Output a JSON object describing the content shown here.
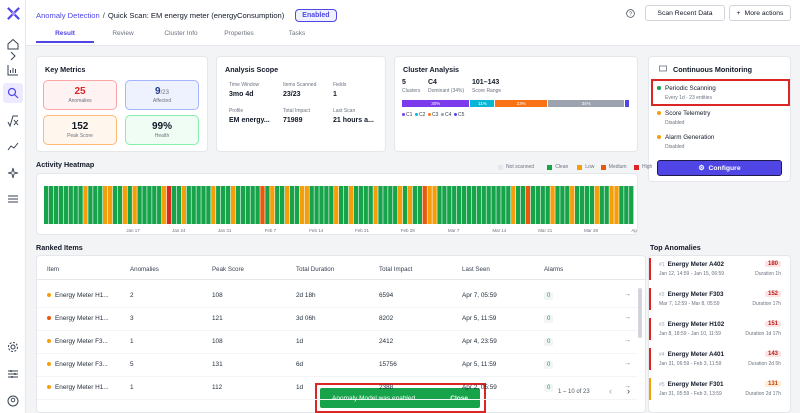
{
  "breadcrumb": {
    "parent": "Anomaly Detection",
    "separator": "/",
    "current": "Quick Scan: EM energy meter (energyConsumption)",
    "status": "Enabled"
  },
  "header": {
    "scan_button": "Scan Recent Data",
    "more_button": "More actions"
  },
  "tabs": [
    "Result",
    "Review",
    "Cluster Info",
    "Properties",
    "Tasks"
  ],
  "key_metrics": {
    "title": "Key Metrics",
    "items": [
      {
        "value": "25",
        "label": "Anomalies",
        "color": "#dc2626",
        "bg": "#fef2f2",
        "border": "#fca5a5"
      },
      {
        "value": "9",
        "suffix": "/23",
        "label": "Affected",
        "color": "#1e3a8a",
        "bg": "#eef2ff",
        "border": "#a5b4fc"
      },
      {
        "value": "152",
        "label": "Peak Score",
        "color": "#111827",
        "bg": "#fff7ed",
        "border": "#fdba74"
      },
      {
        "value": "99%",
        "label": "Health",
        "color": "#111827",
        "bg": "#f0fdf4",
        "border": "#86efac"
      }
    ]
  },
  "analysis_scope": {
    "title": "Analysis Scope",
    "cells": [
      {
        "label": "Time Window",
        "value": "3mo 4d"
      },
      {
        "label": "Items Scanned",
        "value": "23/23"
      },
      {
        "label": "Fields",
        "value": "1"
      },
      {
        "label": "Profile",
        "value": "EM energy..."
      },
      {
        "label": "Total Impact",
        "value": "71989"
      },
      {
        "label": "Last Scan",
        "value": "21 hours a..."
      }
    ]
  },
  "cluster_analysis": {
    "title": "Cluster Analysis",
    "stats": [
      {
        "value": "5",
        "label": "Clusters"
      },
      {
        "value": "C4",
        "label": "Dominant (34%)"
      },
      {
        "value": "101–143",
        "label": "Score Range"
      }
    ],
    "bars": [
      {
        "label": "30%",
        "pct": 30,
        "color": "#7c3aed"
      },
      {
        "label": "11%",
        "pct": 11,
        "color": "#06b6d4"
      },
      {
        "label": "23%",
        "pct": 23,
        "color": "#f97316"
      },
      {
        "label": "34%",
        "pct": 34,
        "color": "#9ca3af"
      },
      {
        "label": "",
        "pct": 2,
        "color": "#4f46e5"
      }
    ],
    "legend": [
      "C1",
      "C2",
      "C3",
      "C4",
      "C5"
    ],
    "legend_colors": [
      "#7c3aed",
      "#06b6d4",
      "#f97316",
      "#9ca3af",
      "#4f46e5"
    ]
  },
  "monitoring": {
    "title": "Continuous Monitoring",
    "items": [
      {
        "name": "Periodic Scanning",
        "sub": "Every 1d · 23 entities",
        "color": "#16a34a"
      },
      {
        "name": "Score Telemetry",
        "sub": "Disabled",
        "color": "#f59e0b"
      },
      {
        "name": "Alarm Generation",
        "sub": "Disabled",
        "color": "#f59e0b"
      }
    ],
    "button": "Configure"
  },
  "heatmap": {
    "title": "Activity Heatmap",
    "legend": [
      "Not scanned",
      "Clean",
      "Low",
      "Medium",
      "High"
    ],
    "legend_colors": [
      "#e5e7eb",
      "#16a34a",
      "#f59e0b",
      "#ea580c",
      "#dc2626"
    ],
    "cells": "GGGGGGGGLGGGLLGGLGLGGGGGLHGGLGGGGGLGGGLGGGGGMGLGGLGGLLGGGGGLGGLGGGGLGGGGLGLGGMLLGGGGGGGGGGGGGGGLGGMGGGGLGGGLGGGGLGGLLGGG",
    "dates": [
      "Jan 17",
      "Jan 24",
      "Jan 31",
      "Feb 7",
      "Feb 14",
      "Feb 21",
      "Feb 28",
      "Mar 7",
      "Mar 14",
      "Mar 21",
      "Mar 28",
      "Apr 4",
      "Apr 11",
      "Apr 18",
      "Apr 21"
    ]
  },
  "ranked": {
    "title": "Ranked Items",
    "columns": [
      "Item",
      "Anomalies",
      "Peak Score",
      "Total Duration",
      "Total Impact",
      "Last Seen",
      "Alarms"
    ],
    "rows": [
      {
        "item": "Energy Meter H1...",
        "anomalies": "2",
        "peak": "108",
        "duration": "2d 18h",
        "impact": "6594",
        "last": "Apr 7, 05:59",
        "alarms": "0",
        "dot": "#f59e0b"
      },
      {
        "item": "Energy Meter H1...",
        "anomalies": "3",
        "peak": "121",
        "duration": "3d 06h",
        "impact": "8202",
        "last": "Apr 5, 11:59",
        "alarms": "0",
        "dot": "#ea580c"
      },
      {
        "item": "Energy Meter F3...",
        "anomalies": "1",
        "peak": "108",
        "duration": "1d",
        "impact": "2412",
        "last": "Apr 4, 23:59",
        "alarms": "0",
        "dot": "#f59e0b"
      },
      {
        "item": "Energy Meter F3...",
        "anomalies": "5",
        "peak": "131",
        "duration": "6d",
        "impact": "15756",
        "last": "Apr 5, 11:59",
        "alarms": "0",
        "dot": "#f59e0b"
      },
      {
        "item": "Energy Meter H1...",
        "anomalies": "1",
        "peak": "112",
        "duration": "1d",
        "impact": "2388",
        "last": "Apr 2, 05:59",
        "alarms": "0",
        "dot": "#f59e0b"
      }
    ],
    "pagination": "1 – 10 of 23"
  },
  "top_anomalies": {
    "title": "Top Anomalies",
    "items": [
      {
        "rank": "#1",
        "name": "Energy Meter A402",
        "sub": "Jan 12, 14:59 - Jan 15, 06:59",
        "score": "180",
        "duration": "Duration 1h"
      },
      {
        "rank": "#2",
        "name": "Energy Meter F303",
        "sub": "Mar 7, 12:59 - Mar 8, 05:59",
        "score": "152",
        "duration": "Duration 17h"
      },
      {
        "rank": "#3",
        "name": "Energy Meter H102",
        "sub": "Jan 8, 18:59 - Jan 10, 11:59",
        "score": "151",
        "duration": "Duration 1d 17h"
      },
      {
        "rank": "#4",
        "name": "Energy Meter A401",
        "sub": "Jan 31, 06:59 - Feb 3, 11:59",
        "score": "143",
        "duration": "Duration 2d 5h"
      },
      {
        "rank": "#5",
        "name": "Energy Meter F301",
        "sub": "Jan 31, 05:59 - Feb 3, 13:59",
        "score": "131",
        "duration": "Duration 2d 17h"
      }
    ]
  },
  "toast": {
    "message": "Anomaly Model was enabled",
    "close": "Close"
  }
}
